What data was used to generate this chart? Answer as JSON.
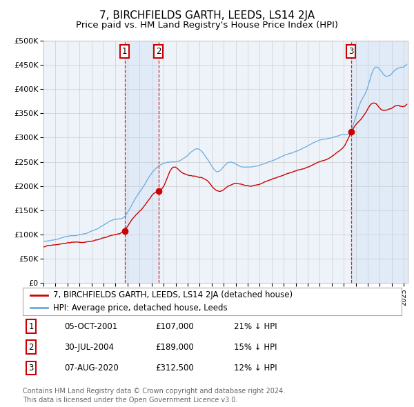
{
  "title": "7, BIRCHFIELDS GARTH, LEEDS, LS14 2JA",
  "subtitle": "Price paid vs. HM Land Registry's House Price Index (HPI)",
  "title_fontsize": 11,
  "subtitle_fontsize": 9.5,
  "ytick_vals": [
    0,
    50000,
    100000,
    150000,
    200000,
    250000,
    300000,
    350000,
    400000,
    450000,
    500000
  ],
  "ytick_labels": [
    "£0",
    "£50K",
    "£100K",
    "£150K",
    "£200K",
    "£250K",
    "£300K",
    "£350K",
    "£400K",
    "£450K",
    "£500K"
  ],
  "ylim": [
    0,
    500000
  ],
  "hpi_color": "#6aaadd",
  "price_color": "#cc0000",
  "grid_color": "#cccccc",
  "chart_bg": "#eef3fa",
  "transactions": [
    {
      "date_str": "2001-10-05",
      "price": 107000,
      "label": "1",
      "display": "05-OCT-2001",
      "price_str": "£107,000",
      "pct": "21% ↓ HPI"
    },
    {
      "date_str": "2004-07-30",
      "price": 189000,
      "label": "2",
      "display": "30-JUL-2004",
      "price_str": "£189,000",
      "pct": "15% ↓ HPI"
    },
    {
      "date_str": "2020-08-07",
      "price": 312500,
      "label": "3",
      "display": "07-AUG-2020",
      "price_str": "£312,500",
      "pct": "12% ↓ HPI"
    }
  ],
  "legend_entries": [
    "7, BIRCHFIELDS GARTH, LEEDS, LS14 2JA (detached house)",
    "HPI: Average price, detached house, Leeds"
  ],
  "footer": "Contains HM Land Registry data © Crown copyright and database right 2024.\nThis data is licensed under the Open Government Licence v3.0."
}
